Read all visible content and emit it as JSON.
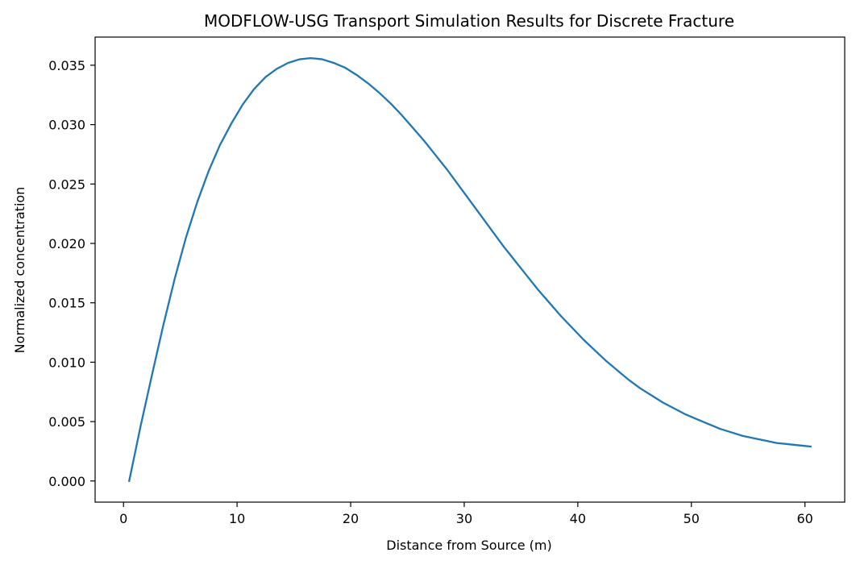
{
  "chart_data": {
    "type": "line",
    "title": "MODFLOW-USG Transport Simulation Results for Discrete Fracture",
    "xlabel": "Distance from Source (m)",
    "ylabel": "Normalized concentration",
    "xlim": [
      -2.5,
      63.5
    ],
    "ylim": [
      -0.00178,
      0.03737
    ],
    "xticks": [
      0,
      10,
      20,
      30,
      40,
      50,
      60
    ],
    "xtick_labels": [
      "0",
      "10",
      "20",
      "30",
      "40",
      "50",
      "60"
    ],
    "yticks": [
      0.0,
      0.005,
      0.01,
      0.015,
      0.02,
      0.025,
      0.03,
      0.035
    ],
    "ytick_labels": [
      "0.000",
      "0.005",
      "0.010",
      "0.015",
      "0.020",
      "0.025",
      "0.030",
      "0.035"
    ],
    "grid": false,
    "series": [
      {
        "color": "#1f77b4",
        "x": [
          0.5,
          1.5,
          2.5,
          3.5,
          4.5,
          5.5,
          6.5,
          7.5,
          8.5,
          9.5,
          10.5,
          11.5,
          12.5,
          13.5,
          14.5,
          15.5,
          16.5,
          17.5,
          18.5,
          19.5,
          20.5,
          21.5,
          22.5,
          23.5,
          24.5,
          25.5,
          26.5,
          27.5,
          28.5,
          29.5,
          30.5,
          31.5,
          32.5,
          33.5,
          34.5,
          35.5,
          36.5,
          37.5,
          38.5,
          39.5,
          40.5,
          41.5,
          42.5,
          43.5,
          44.5,
          45.5,
          46.5,
          47.5,
          48.5,
          49.5,
          50.5,
          51.5,
          52.5,
          53.5,
          54.5,
          55.5,
          56.5,
          57.5,
          58.5,
          59.5,
          60.5
        ],
        "y": [
          0.0,
          0.0046,
          0.0089,
          0.0131,
          0.017,
          0.0205,
          0.0235,
          0.0261,
          0.0283,
          0.0301,
          0.0317,
          0.033,
          0.034,
          0.0347,
          0.0352,
          0.0355,
          0.0356,
          0.0355,
          0.0352,
          0.0348,
          0.0342,
          0.0335,
          0.0327,
          0.0318,
          0.0308,
          0.0297,
          0.0286,
          0.0274,
          0.0262,
          0.0249,
          0.0236,
          0.0223,
          0.021,
          0.0197,
          0.0185,
          0.0173,
          0.0161,
          0.015,
          0.0139,
          0.0129,
          0.0119,
          0.011,
          0.0101,
          0.0093,
          0.0085,
          0.0078,
          0.0072,
          0.0066,
          0.0061,
          0.0056,
          0.0052,
          0.0048,
          0.0044,
          0.0041,
          0.0038,
          0.0036,
          0.0034,
          0.0032,
          0.0031,
          0.003,
          0.0029
        ]
      }
    ]
  }
}
